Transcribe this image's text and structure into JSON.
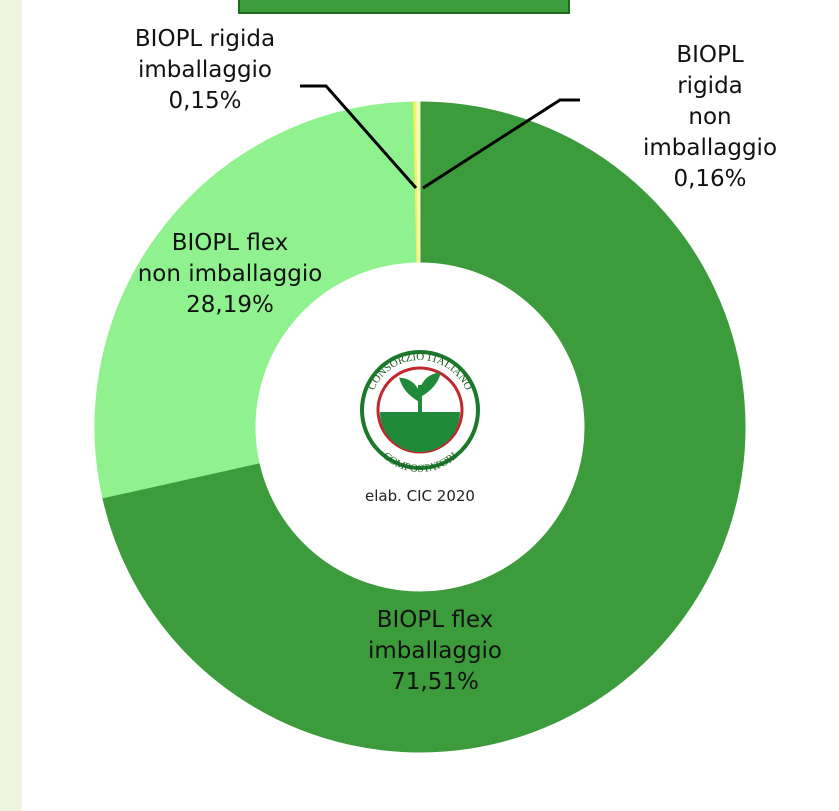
{
  "chart_data": {
    "type": "donut",
    "categories": [
      "BIOPL flex\nimballaggio",
      "BIOPL flex\nnon imballaggio",
      "BIOPL rigida\nimballaggio",
      "BIOPL rigida\nnon imballaggio"
    ],
    "values": [
      71.51,
      28.19,
      0.15,
      0.16
    ],
    "value_labels": [
      "71,51%",
      "28,19%",
      "0,15%",
      "0,16%"
    ],
    "colors": [
      "#3c9b3a",
      "#90f28f",
      "#f3f35a",
      "#f7f7c0"
    ],
    "annotation": "elab. CIC 2020",
    "logo": {
      "top": "CONSORZIO ITALIANO",
      "bottom": "COMPOSTATORI"
    }
  }
}
